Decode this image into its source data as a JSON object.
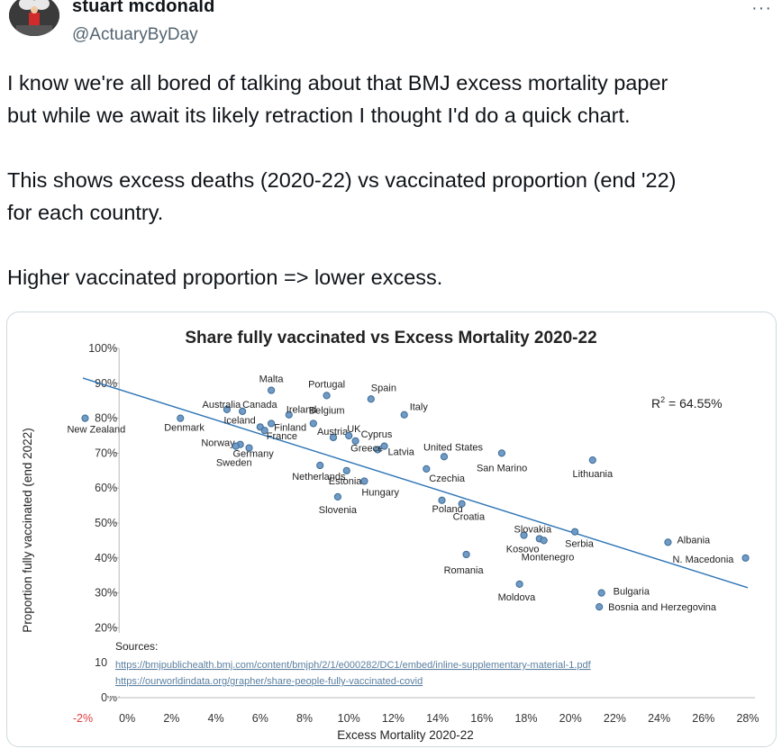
{
  "tweet": {
    "author_name": "stuart mcdonald",
    "handle": "@ActuaryByDay",
    "more_icon": "more-icon",
    "paragraphs": [
      [
        "I know we're all bored of talking about that BMJ excess mortality paper",
        "but while we await its likely retraction I thought I'd do a quick chart."
      ],
      [
        "This shows excess deaths (2020-22) vs vaccinated proportion (end '22)",
        "for each country."
      ],
      [
        "Higher vaccinated proportion => lower excess."
      ]
    ]
  },
  "chart_data": {
    "type": "scatter",
    "title": "Share fully vaccinated vs Excess Mortality 2020-22",
    "xlabel": "Excess Mortality 2020-22",
    "ylabel": "Proportion fully vaccinated (end 2022)",
    "xlim": [
      -2,
      28
    ],
    "ylim": [
      0,
      100
    ],
    "xticks": [
      "-2%",
      "0%",
      "2%",
      "4%",
      "6%",
      "8%",
      "10%",
      "12%",
      "14%",
      "16%",
      "18%",
      "20%",
      "22%",
      "24%",
      "26%",
      "28%"
    ],
    "yticks": [
      "0%",
      "10%",
      "20%",
      "30%",
      "40%",
      "50%",
      "60%",
      "70%",
      "80%",
      "90%",
      "100%"
    ],
    "r_squared": "64.55%",
    "trendline": {
      "x": [
        -2,
        28
      ],
      "y": [
        91.5,
        31.5
      ]
    },
    "points": [
      {
        "label": "Malta",
        "x": 6.5,
        "y": 88
      },
      {
        "label": "Portugal",
        "x": 9.0,
        "y": 86.5
      },
      {
        "label": "Spain",
        "x": 11.0,
        "y": 85.5
      },
      {
        "label": "Italy",
        "x": 12.5,
        "y": 81.0
      },
      {
        "label": "Australia",
        "x": 4.5,
        "y": 82.5
      },
      {
        "label": "Canada",
        "x": 5.2,
        "y": 82.0
      },
      {
        "label": "Ireland",
        "x": 7.3,
        "y": 81.0
      },
      {
        "label": "Belgium",
        "x": 8.4,
        "y": 78.5
      },
      {
        "label": "New Zealand",
        "x": -1.9,
        "y": 80.0
      },
      {
        "label": "Denmark",
        "x": 2.4,
        "y": 80.0
      },
      {
        "label": "Iceland",
        "x": 6.0,
        "y": 77.5
      },
      {
        "label": "Finland",
        "x": 6.5,
        "y": 78.5
      },
      {
        "label": "France",
        "x": 6.2,
        "y": 76.5
      },
      {
        "label": "Austria",
        "x": 9.3,
        "y": 74.5
      },
      {
        "label": "UK",
        "x": 10.0,
        "y": 75.0
      },
      {
        "label": "Cyprus",
        "x": 10.3,
        "y": 73.5
      },
      {
        "label": "Greece",
        "x": 11.3,
        "y": 71.0
      },
      {
        "label": "Latvia",
        "x": 11.6,
        "y": 72.0
      },
      {
        "label": "Norway",
        "x": 5.1,
        "y": 72.5
      },
      {
        "label": "Germany",
        "x": 5.5,
        "y": 71.5
      },
      {
        "label": "Sweden",
        "x": 4.9,
        "y": 72.0
      },
      {
        "label": "United States",
        "x": 14.3,
        "y": 69.0
      },
      {
        "label": "San Marino",
        "x": 16.9,
        "y": 70.0
      },
      {
        "label": "Lithuania",
        "x": 21.0,
        "y": 68.0
      },
      {
        "label": "Netherlands",
        "x": 8.7,
        "y": 66.5
      },
      {
        "label": "Estonia",
        "x": 9.9,
        "y": 65.0
      },
      {
        "label": "Hungary",
        "x": 10.7,
        "y": 62.0
      },
      {
        "label": "Slovenia",
        "x": 9.5,
        "y": 57.5
      },
      {
        "label": "Czechia",
        "x": 13.5,
        "y": 65.5
      },
      {
        "label": "Poland",
        "x": 14.2,
        "y": 56.5
      },
      {
        "label": "Croatia",
        "x": 15.1,
        "y": 55.5
      },
      {
        "label": "Slovakia",
        "x": 17.9,
        "y": 46.5
      },
      {
        "label": "Kosovo",
        "x": 18.6,
        "y": 45.5
      },
      {
        "label": "Montenegro",
        "x": 18.8,
        "y": 45.0
      },
      {
        "label": "Serbia",
        "x": 20.2,
        "y": 47.5
      },
      {
        "label": "Romania",
        "x": 15.3,
        "y": 41.0
      },
      {
        "label": "Moldova",
        "x": 17.7,
        "y": 32.5
      },
      {
        "label": "Albania",
        "x": 24.4,
        "y": 44.5
      },
      {
        "label": "N. Macedonia",
        "x": 27.9,
        "y": 40.0
      },
      {
        "label": "Bulgaria",
        "x": 21.4,
        "y": 30.0
      },
      {
        "label": "Bosnia and Herzegovina",
        "x": 21.3,
        "y": 26.0
      }
    ],
    "sources": {
      "title": "Sources:",
      "links": [
        "https://bmjpublichealth.bmj.com/content/bmjph/2/1/e000282/DC1/embed/inline-supplementary-material-1.pdf",
        "https://ourworldindata.org/grapher/share-people-fully-vaccinated-covid"
      ]
    },
    "colors": {
      "marker_fill": "#6f9bc6",
      "marker_stroke": "#3d6b96",
      "trendline": "#2e75b6",
      "axis_text": "#333333",
      "negative_tick": "#e03c3c",
      "source_link": "#5a7fa0"
    }
  }
}
